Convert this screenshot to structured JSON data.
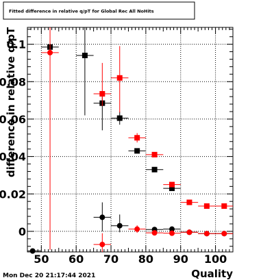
{
  "chart_data": {
    "type": "scatter",
    "title": "Fitted difference in relative q/pT for Global Rec All NoHits",
    "xlabel": "Quality",
    "ylabel": "difference in relative q/pT",
    "xlim": [
      46,
      105
    ],
    "ylim": [
      -0.011,
      0.109
    ],
    "x_ticks": [
      50,
      60,
      70,
      80,
      90,
      100
    ],
    "x_tick_labels": [
      "50",
      "60",
      "70",
      "80",
      "90",
      "100"
    ],
    "y_ticks": [
      0.0,
      0.02,
      0.04,
      0.06,
      0.08,
      0.1
    ],
    "y_tick_labels": [
      "0",
      "0.02",
      "0.04",
      "0.06",
      "0.08",
      "0.1"
    ],
    "grid": true,
    "timestamp": "Mon Dec 20 21:17:44 2021",
    "series": [
      {
        "marker": "square",
        "color": "#000000",
        "points": [
          {
            "x": 52.5,
            "y": 0.0985,
            "xerr": 2.5,
            "yerr_low": 0.001,
            "yerr_high": 0.001
          },
          {
            "x": 62.5,
            "y": 0.094,
            "xerr": 2.5,
            "yerr_low": 0.032,
            "yerr_high": 0.015
          },
          {
            "x": 67.5,
            "y": 0.0685,
            "xerr": 2.5,
            "yerr_low": 0.0145,
            "yerr_high": 0.0045
          },
          {
            "x": 72.5,
            "y": 0.0605,
            "xerr": 2.5,
            "yerr_low": 0.0035,
            "yerr_high": 0.0035
          },
          {
            "x": 77.5,
            "y": 0.043,
            "xerr": 2.5,
            "yerr_low": 0.001,
            "yerr_high": 0.001
          },
          {
            "x": 82.5,
            "y": 0.033,
            "xerr": 2.5,
            "yerr_low": 0.001,
            "yerr_high": 0.001
          },
          {
            "x": 87.5,
            "y": 0.023,
            "xerr": 2.5,
            "yerr_low": 0.001,
            "yerr_high": 0.001
          }
        ]
      },
      {
        "marker": "square",
        "color": "#ff0000",
        "points": [
          {
            "x": 67.5,
            "y": 0.0735,
            "xerr": 2.5,
            "yerr_low": 0.0065,
            "yerr_high": 0.0165
          },
          {
            "x": 72.5,
            "y": 0.082,
            "xerr": 2.5,
            "yerr_low": 0.0185,
            "yerr_high": 0.017
          },
          {
            "x": 77.5,
            "y": 0.05,
            "xerr": 2.5,
            "yerr_low": 0.0025,
            "yerr_high": 0.0025
          },
          {
            "x": 82.5,
            "y": 0.041,
            "xerr": 2.5,
            "yerr_low": 0.001,
            "yerr_high": 0.001
          },
          {
            "x": 87.5,
            "y": 0.025,
            "xerr": 2.5,
            "yerr_low": 0.001,
            "yerr_high": 0.001
          },
          {
            "x": 92.5,
            "y": 0.0155,
            "xerr": 2.5,
            "yerr_low": 0.0005,
            "yerr_high": 0.0005
          },
          {
            "x": 97.5,
            "y": 0.0135,
            "xerr": 2.5,
            "yerr_low": 0.0005,
            "yerr_high": 0.0005
          },
          {
            "x": 102.5,
            "y": 0.0135,
            "xerr": 2.5,
            "yerr_low": 0.0005,
            "yerr_high": 0.0005
          }
        ]
      },
      {
        "marker": "circle",
        "color": "#000000",
        "points": [
          {
            "x": 47.5,
            "y": -0.0105,
            "xerr": 2.5,
            "yerr_low": 0.0005,
            "yerr_high": 0.0005
          },
          {
            "x": 67.5,
            "y": 0.0075,
            "xerr": 2.5,
            "yerr_low": 0.0075,
            "yerr_high": 0.008
          },
          {
            "x": 72.5,
            "y": 0.003,
            "xerr": 2.5,
            "yerr_low": 0.0035,
            "yerr_high": 0.006
          },
          {
            "x": 82.5,
            "y": 0.001,
            "xerr": 2.5,
            "yerr_low": 0.001,
            "yerr_high": 0.001
          },
          {
            "x": 87.5,
            "y": 0.0012,
            "xerr": 2.5,
            "yerr_low": 0.0008,
            "yerr_high": 0.0008
          },
          {
            "x": 92.5,
            "y": -0.0005,
            "xerr": 2.5,
            "yerr_low": 0.0003,
            "yerr_high": 0.0003
          },
          {
            "x": 97.5,
            "y": -0.0012,
            "xerr": 2.5,
            "yerr_low": 0.0003,
            "yerr_high": 0.0003
          },
          {
            "x": 102.5,
            "y": -0.0012,
            "xerr": 2.5,
            "yerr_low": 0.0003,
            "yerr_high": 0.0003
          }
        ]
      },
      {
        "marker": "circle",
        "color": "#ff0000",
        "points": [
          {
            "x": 52.5,
            "y": 0.0955,
            "xerr": 2.5,
            "yerr_low": 0.1055,
            "yerr_high": 0.0135
          },
          {
            "x": 67.5,
            "y": -0.007,
            "xerr": 2.5,
            "yerr_low": 0.004,
            "yerr_high": 0.006
          },
          {
            "x": 77.5,
            "y": 0.0012,
            "xerr": 2.5,
            "yerr_low": 0.002,
            "yerr_high": 0.002
          },
          {
            "x": 82.5,
            "y": -0.0008,
            "xerr": 2.5,
            "yerr_low": 0.0008,
            "yerr_high": 0.0008
          },
          {
            "x": 87.5,
            "y": -0.001,
            "xerr": 2.5,
            "yerr_low": 0.0008,
            "yerr_high": 0.0008
          },
          {
            "x": 92.5,
            "y": -0.0005,
            "xerr": 2.5,
            "yerr_low": 0.0003,
            "yerr_high": 0.0003
          },
          {
            "x": 97.5,
            "y": -0.0012,
            "xerr": 2.5,
            "yerr_low": 0.0003,
            "yerr_high": 0.0003
          },
          {
            "x": 102.5,
            "y": -0.0012,
            "xerr": 2.5,
            "yerr_low": 0.0003,
            "yerr_high": 0.0003
          }
        ]
      }
    ]
  }
}
